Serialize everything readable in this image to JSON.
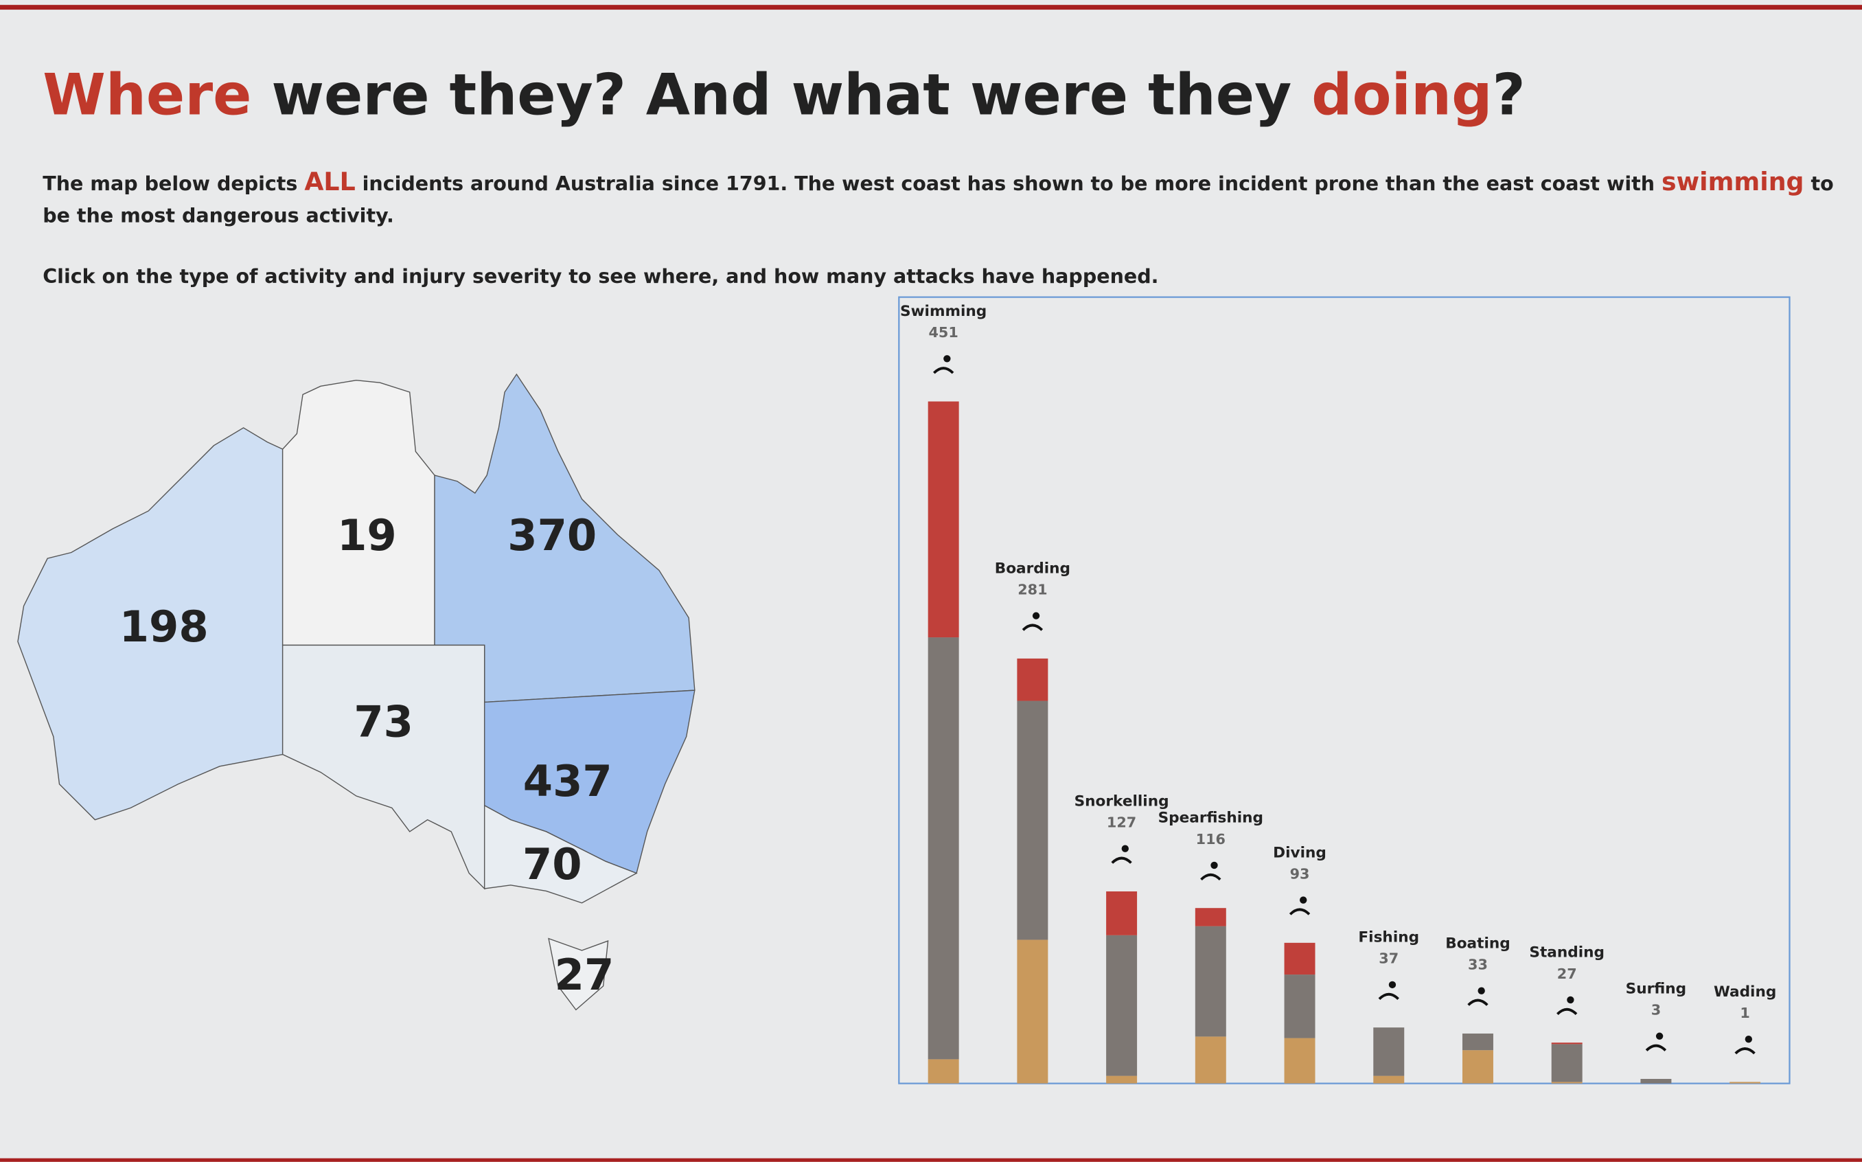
{
  "header": {
    "title_parts": [
      "Where",
      " were they? And what were they ",
      "doing",
      "?"
    ],
    "description": [
      [
        "The map below depicts ",
        "ALL",
        " incidents around Australia since 1791. The west coast has shown to be more incident prone than the east coast with ",
        "swimming",
        " to"
      ],
      [
        "be the most dangerous activity."
      ]
    ],
    "instruction": "Click on the type of activity and injury severity to see where, and how many attacks have happened.",
    "accent_color": "#c0392b"
  },
  "chart_data": [
    {
      "type": "map",
      "values": [
        198,
        19,
        370,
        73,
        437,
        70,
        27
      ],
      "colors": [
        "#cfdff3",
        "#f2f2f2",
        "#adc9ef",
        "#e6ebf0",
        "#9dbdee",
        "#e8edf2",
        "#eef0f2"
      ]
    },
    {
      "type": "stacked_bar",
      "categories": [
        "Swimming",
        "Boarding",
        "Snorkelling",
        "Spearfishing",
        "Diving",
        "Fishing",
        "Boating",
        "Standing",
        "Surfing",
        "Wading"
      ],
      "totals": [
        451,
        281,
        127,
        116,
        93,
        37,
        33,
        27,
        3,
        1
      ],
      "series": [
        {
          "color": "#c9995c",
          "values": [
            16,
            95,
            5,
            31,
            30,
            5,
            22,
            1,
            0,
            1
          ]
        },
        {
          "color": "#7d7773",
          "values": [
            279,
            158,
            93,
            73,
            42,
            32,
            11,
            25,
            3,
            0
          ]
        },
        {
          "color": "#c0403a",
          "values": [
            156,
            28,
            29,
            12,
            21,
            0,
            0,
            1,
            0,
            0
          ]
        }
      ],
      "ylim": [
        0,
        520
      ]
    }
  ]
}
